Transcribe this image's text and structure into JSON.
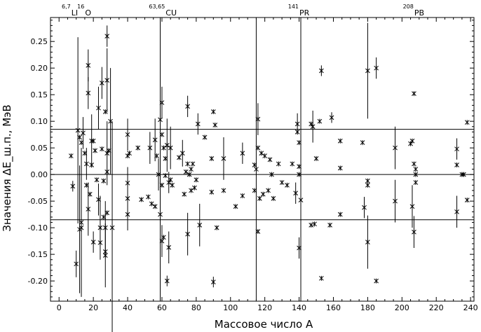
{
  "chart_data": {
    "type": "scatter",
    "xlabel": "Массовое число A",
    "ylabel": "Значения ΔE_ш.п., МэВ",
    "xlim": [
      -5,
      242
    ],
    "ylim": [
      -0.238,
      0.295
    ],
    "xticks": [
      0,
      20,
      40,
      60,
      80,
      100,
      120,
      140,
      160,
      180,
      200,
      220,
      240
    ],
    "xtick_labels": [
      "0",
      "20",
      "40",
      "60",
      "80",
      "100",
      "120",
      "140",
      "160",
      "180",
      "200",
      "220",
      "240"
    ],
    "yticks": [
      0.25,
      0.2,
      0.15,
      0.1,
      0.05,
      0.0,
      -0.05,
      -0.1,
      -0.15,
      -0.2
    ],
    "ytick_labels": [
      "0.25",
      "0.20",
      "0.15",
      "0.10",
      "0.05",
      "0.00",
      "-0.05",
      "-0.10",
      "-0.15",
      "-0.20"
    ],
    "hlines": [
      0.085,
      0.0,
      -0.085
    ],
    "vlines": [
      59,
      115,
      141
    ],
    "top_labels": [
      {
        "x": 8,
        "sup": "6,7",
        "text": "LI"
      },
      {
        "x": 16,
        "sup": "16",
        "text": "O"
      },
      {
        "x": 63,
        "sup": "63,65",
        "text": "CU"
      },
      {
        "x": 141,
        "sup": "141",
        "text": "PR"
      },
      {
        "x": 208,
        "sup": "208",
        "text": "PB"
      }
    ],
    "points": [
      {
        "x": 7,
        "y": 0.035
      },
      {
        "x": 8,
        "y": -0.022,
        "err": 0.01
      },
      {
        "x": 10,
        "y": -0.168,
        "err": 0.025
      },
      {
        "x": 11,
        "y": 0.083,
        "err": 0.175
      },
      {
        "x": 12,
        "y": -0.103,
        "err": 0.12
      },
      {
        "x": 12,
        "y": 0.07
      },
      {
        "x": 13,
        "y": -0.09,
        "err": 0.14
      },
      {
        "x": 13,
        "y": 0.06
      },
      {
        "x": 13,
        "y": -0.1
      },
      {
        "x": 14,
        "y": 0.078,
        "err": 0.03
      },
      {
        "x": 15,
        "y": 0.04
      },
      {
        "x": 16,
        "y": 0.02,
        "err": 0.03
      },
      {
        "x": 16,
        "y": -0.02
      },
      {
        "x": 17,
        "y": -0.065,
        "err": 0.05
      },
      {
        "x": 17,
        "y": 0.153,
        "err": 0.03
      },
      {
        "x": 17,
        "y": 0.205,
        "err": 0.03
      },
      {
        "x": 18,
        "y": -0.037
      },
      {
        "x": 19,
        "y": 0.063,
        "err": 0.05
      },
      {
        "x": 19,
        "y": 0.018
      },
      {
        "x": 20,
        "y": 0.063
      },
      {
        "x": 20,
        "y": -0.127,
        "err": 0.02
      },
      {
        "x": 21,
        "y": 0.045
      },
      {
        "x": 22,
        "y": -0.01
      },
      {
        "x": 23,
        "y": -0.047,
        "err": 0.03
      },
      {
        "x": 23,
        "y": 0.125,
        "err": 0.04
      },
      {
        "x": 24,
        "y": -0.128
      },
      {
        "x": 24,
        "y": -0.1,
        "err": 0.06
      },
      {
        "x": 25,
        "y": 0.172,
        "err": 0.03
      },
      {
        "x": 25,
        "y": 0.048
      },
      {
        "x": 26,
        "y": -0.012
      },
      {
        "x": 26,
        "y": -0.08
      },
      {
        "x": 27,
        "y": -0.1,
        "err": 0.05
      },
      {
        "x": 27,
        "y": 0.118
      },
      {
        "x": 27,
        "y": -0.152,
        "err": 0.06
      },
      {
        "x": 27,
        "y": -0.145
      },
      {
        "x": 28,
        "y": 0.26,
        "err": 0.02
      },
      {
        "x": 28,
        "y": 0.177,
        "err": 0.06
      },
      {
        "x": 28,
        "y": 0.04,
        "err": 0.06
      },
      {
        "x": 28,
        "y": 0.005
      },
      {
        "x": 28,
        "y": -0.072
      },
      {
        "x": 29,
        "y": 0.045
      },
      {
        "x": 30,
        "y": 0.1,
        "err": 0.1
      },
      {
        "x": 31,
        "y": -0.1,
        "err": 0.2
      },
      {
        "x": 40,
        "y": 0.075,
        "err": 0.03
      },
      {
        "x": 40,
        "y": 0.035
      },
      {
        "x": 40,
        "y": -0.016,
        "err": 0.03
      },
      {
        "x": 40,
        "y": -0.045
      },
      {
        "x": 40,
        "y": -0.075,
        "err": 0.03
      },
      {
        "x": 41,
        "y": 0.04
      },
      {
        "x": 46,
        "y": 0.05
      },
      {
        "x": 48,
        "y": -0.047
      },
      {
        "x": 52,
        "y": -0.042
      },
      {
        "x": 53,
        "y": 0.05,
        "err": 0.03
      },
      {
        "x": 54,
        "y": -0.055
      },
      {
        "x": 56,
        "y": 0.065,
        "err": 0.04
      },
      {
        "x": 56,
        "y": -0.06
      },
      {
        "x": 57,
        "y": 0.035
      },
      {
        "x": 58,
        "y": 0.0,
        "err": 0.03
      },
      {
        "x": 59,
        "y": 0.103
      },
      {
        "x": 59,
        "y": -0.075,
        "err": 0.05
      },
      {
        "x": 60,
        "y": 0.135,
        "err": 0.03
      },
      {
        "x": 60,
        "y": 0.075
      },
      {
        "x": 60,
        "y": -0.02
      },
      {
        "x": 60,
        "y": -0.125,
        "err": 0.03
      },
      {
        "x": 61,
        "y": 0.05
      },
      {
        "x": 61,
        "y": -0.118
      },
      {
        "x": 62,
        "y": -0.002
      },
      {
        "x": 62,
        "y": 0.03
      },
      {
        "x": 63,
        "y": 0.055,
        "err": 0.05
      },
      {
        "x": 63,
        "y": -0.2,
        "err": 0.01
      },
      {
        "x": 64,
        "y": -0.015,
        "err": 0.02
      },
      {
        "x": 64,
        "y": -0.137,
        "err": 0.03
      },
      {
        "x": 65,
        "y": 0.05,
        "err": 0.04
      },
      {
        "x": 65,
        "y": -0.01
      },
      {
        "x": 66,
        "y": -0.02
      },
      {
        "x": 70,
        "y": 0.032
      },
      {
        "x": 72,
        "y": 0.04,
        "err": 0.025
      },
      {
        "x": 73,
        "y": -0.037
      },
      {
        "x": 74,
        "y": 0.005
      },
      {
        "x": 75,
        "y": 0.128,
        "err": 0.02
      },
      {
        "x": 75,
        "y": -0.112,
        "err": 0.04
      },
      {
        "x": 75,
        "y": 0.02
      },
      {
        "x": 76,
        "y": 0.0
      },
      {
        "x": 77,
        "y": -0.03
      },
      {
        "x": 77,
        "y": 0.01
      },
      {
        "x": 78,
        "y": 0.02
      },
      {
        "x": 79,
        "y": -0.025
      },
      {
        "x": 80,
        "y": -0.01
      },
      {
        "x": 81,
        "y": 0.095,
        "err": 0.02
      },
      {
        "x": 82,
        "y": -0.095,
        "err": 0.04
      },
      {
        "x": 85,
        "y": 0.07
      },
      {
        "x": 89,
        "y": 0.03
      },
      {
        "x": 89,
        "y": -0.033
      },
      {
        "x": 90,
        "y": 0.118
      },
      {
        "x": 90,
        "y": -0.202,
        "err": 0.01
      },
      {
        "x": 91,
        "y": 0.093
      },
      {
        "x": 92,
        "y": -0.1
      },
      {
        "x": 96,
        "y": 0.03,
        "err": 0.04
      },
      {
        "x": 96,
        "y": -0.03
      },
      {
        "x": 103,
        "y": -0.06
      },
      {
        "x": 107,
        "y": 0.04,
        "err": 0.02
      },
      {
        "x": 107,
        "y": -0.04
      },
      {
        "x": 114,
        "y": 0.018
      },
      {
        "x": 114,
        "y": -0.03
      },
      {
        "x": 115,
        "y": 0.01
      },
      {
        "x": 116,
        "y": 0.104,
        "err": 0.03
      },
      {
        "x": 116,
        "y": 0.05
      },
      {
        "x": 116,
        "y": -0.107
      },
      {
        "x": 117,
        "y": -0.045
      },
      {
        "x": 118,
        "y": 0.04
      },
      {
        "x": 119,
        "y": -0.037
      },
      {
        "x": 120,
        "y": 0.035
      },
      {
        "x": 122,
        "y": -0.03
      },
      {
        "x": 123,
        "y": 0.028
      },
      {
        "x": 124,
        "y": 0.0
      },
      {
        "x": 125,
        "y": -0.045
      },
      {
        "x": 128,
        "y": 0.02
      },
      {
        "x": 130,
        "y": -0.015
      },
      {
        "x": 133,
        "y": -0.02
      },
      {
        "x": 136,
        "y": 0.02
      },
      {
        "x": 138,
        "y": -0.035,
        "err": 0.02
      },
      {
        "x": 139,
        "y": 0.095,
        "err": 0.02
      },
      {
        "x": 139,
        "y": 0.08
      },
      {
        "x": 140,
        "y": 0.06
      },
      {
        "x": 140,
        "y": 0.015
      },
      {
        "x": 140,
        "y": 0.0
      },
      {
        "x": 140,
        "y": -0.138,
        "err": 0.02
      },
      {
        "x": 141,
        "y": -0.048
      },
      {
        "x": 147,
        "y": 0.095
      },
      {
        "x": 147,
        "y": -0.095
      },
      {
        "x": 148,
        "y": 0.09,
        "err": 0.03
      },
      {
        "x": 149,
        "y": -0.093
      },
      {
        "x": 150,
        "y": 0.03
      },
      {
        "x": 152,
        "y": 0.1
      },
      {
        "x": 153,
        "y": 0.195,
        "err": 0.01
      },
      {
        "x": 153,
        "y": -0.195
      },
      {
        "x": 158,
        "y": -0.095
      },
      {
        "x": 159,
        "y": 0.107,
        "err": 0.01
      },
      {
        "x": 164,
        "y": 0.063
      },
      {
        "x": 164,
        "y": 0.012
      },
      {
        "x": 164,
        "y": -0.075
      },
      {
        "x": 177,
        "y": 0.06
      },
      {
        "x": 178,
        "y": -0.062,
        "err": 0.02
      },
      {
        "x": 180,
        "y": 0.195,
        "err": 0.09
      },
      {
        "x": 180,
        "y": -0.012
      },
      {
        "x": 180,
        "y": -0.02
      },
      {
        "x": 180,
        "y": -0.127,
        "err": 0.05
      },
      {
        "x": 185,
        "y": 0.2,
        "err": 0.02
      },
      {
        "x": 185,
        "y": -0.2
      },
      {
        "x": 196,
        "y": 0.05,
        "err": 0.04
      },
      {
        "x": 196,
        "y": -0.05,
        "err": 0.04
      },
      {
        "x": 205,
        "y": 0.058
      },
      {
        "x": 206,
        "y": 0.063
      },
      {
        "x": 206,
        "y": -0.06,
        "err": 0.04
      },
      {
        "x": 207,
        "y": 0.152
      },
      {
        "x": 207,
        "y": 0.02
      },
      {
        "x": 207,
        "y": -0.108,
        "err": 0.03
      },
      {
        "x": 208,
        "y": 0.0
      },
      {
        "x": 208,
        "y": -0.015
      },
      {
        "x": 208,
        "y": 0.01
      },
      {
        "x": 232,
        "y": 0.048,
        "err": 0.02
      },
      {
        "x": 232,
        "y": 0.018
      },
      {
        "x": 232,
        "y": -0.07,
        "err": 0.03
      },
      {
        "x": 235,
        "y": 0.0
      },
      {
        "x": 236,
        "y": 0.0
      },
      {
        "x": 238,
        "y": 0.098
      },
      {
        "x": 238,
        "y": -0.048
      }
    ]
  }
}
